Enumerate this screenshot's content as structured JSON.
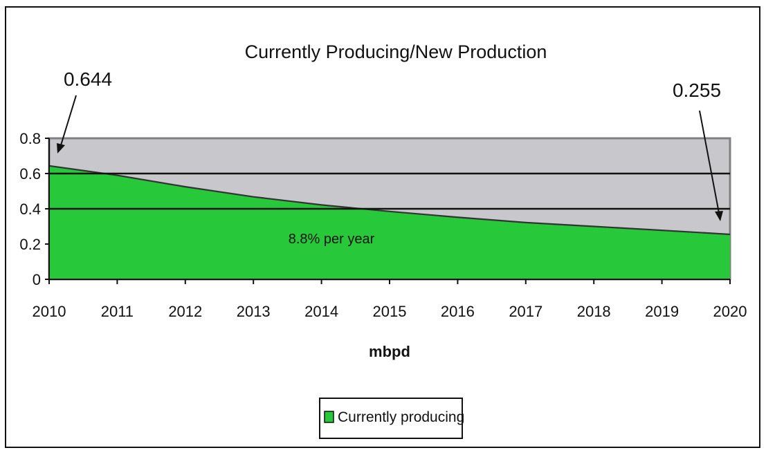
{
  "chart_data": {
    "type": "area",
    "title": "Currently Producing/New Production",
    "xlabel": "mbpd",
    "ylabel": "",
    "x": [
      2010,
      2011,
      2012,
      2013,
      2014,
      2015,
      2016,
      2017,
      2018,
      2019,
      2020
    ],
    "x_tick_labels": [
      "2010",
      "2011",
      "2012",
      "2013",
      "2014",
      "2015",
      "2016",
      "2017",
      "2018",
      "2019",
      "2020"
    ],
    "series": [
      {
        "name": "Currently producing",
        "values": [
          0.644,
          0.59,
          0.525,
          0.468,
          0.422,
          0.385,
          0.352,
          0.322,
          0.3,
          0.278,
          0.255
        ],
        "color": "#27c93a"
      }
    ],
    "ylim": [
      0,
      0.8
    ],
    "y_ticks": [
      0,
      0.2,
      0.4,
      0.6,
      0.8
    ],
    "y_tick_labels": [
      "0",
      "0.2",
      "0.4",
      "0.6",
      "0.8"
    ],
    "gridlines": [
      0.4,
      0.6
    ],
    "plot_background": "#c8c8cc",
    "legend": {
      "position": "bottom-center",
      "label": "Currently producing"
    },
    "annotations": {
      "start_value": "0.644",
      "end_value": "0.255",
      "decline_rate": "8.8% per year"
    }
  }
}
